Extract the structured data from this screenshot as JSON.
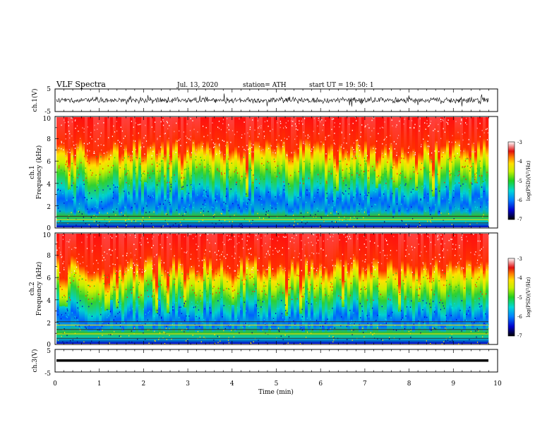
{
  "header": {
    "title": "VLF  Spectra",
    "date": "Jul.  13,  2020",
    "station": "station= ATH",
    "start": "start  UT  =    19: 50: 1"
  },
  "chart_data": [
    {
      "type": "line",
      "name": "ch1-waveform",
      "ylabel": "ch.1(V)",
      "ylim": [
        -5,
        5
      ],
      "yticks": [
        "5",
        "-5"
      ],
      "xlim": [
        0,
        10
      ]
    },
    {
      "type": "heatmap",
      "name": "ch1-spectrogram",
      "ylabel_line1": "ch.1",
      "ylabel_line2": "Frequency  (kHz)",
      "ylim": [
        0,
        10
      ],
      "yticks": [
        "10",
        "8",
        "6",
        "4",
        "2",
        "0"
      ],
      "xlim": [
        0,
        9.8
      ],
      "colorbar": {
        "label": "log(PSD)(V²/Hz)",
        "range": [
          -7,
          -3
        ],
        "ticks": [
          "-3",
          "-4",
          "-5",
          "-6",
          "-7"
        ]
      }
    },
    {
      "type": "heatmap",
      "name": "ch2-spectrogram",
      "ylabel_line1": "ch.2",
      "ylabel_line2": "Frequency  (kHz)",
      "ylim": [
        0,
        10
      ],
      "yticks": [
        "10",
        "8",
        "6",
        "4",
        "2",
        "0"
      ],
      "xlim": [
        0,
        9.8
      ],
      "colorbar": {
        "label": "log(PSD)(V²/Hz)",
        "range": [
          -7,
          -3
        ],
        "ticks": [
          "-3",
          "-4",
          "-5",
          "-6",
          "-7"
        ]
      }
    },
    {
      "type": "line",
      "name": "ch3-waveform",
      "ylabel": "ch.3(V)",
      "ylim": [
        -5,
        5
      ],
      "yticks": [
        "5",
        "-5"
      ],
      "xlim": [
        0,
        10
      ]
    }
  ],
  "xaxis": {
    "label": "Time  (min)",
    "range": [
      0,
      10
    ],
    "ticks": [
      "0",
      "1",
      "2",
      "3",
      "4",
      "5",
      "6",
      "7",
      "8",
      "9",
      "10"
    ]
  }
}
